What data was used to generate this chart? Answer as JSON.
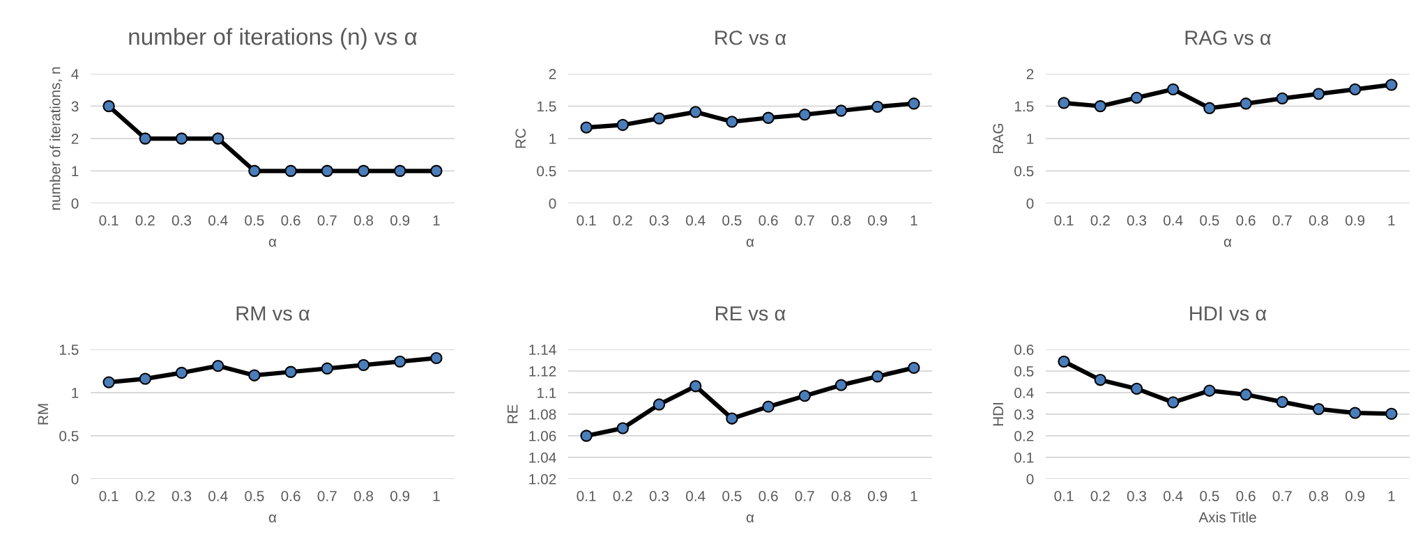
{
  "chart_data": [
    {
      "type": "line",
      "title": "number of iterations (n) vs α",
      "xlabel": "α",
      "ylabel": "number of iterations, n",
      "categories": [
        "0.1",
        "0.2",
        "0.3",
        "0.4",
        "0.5",
        "0.6",
        "0.7",
        "0.8",
        "0.9",
        "1"
      ],
      "series": [
        {
          "color": "#4a7ebb",
          "values": [
            3,
            2,
            2,
            2,
            1,
            1,
            1,
            1,
            1,
            1
          ]
        }
      ],
      "ylim": [
        0,
        4
      ],
      "yticks": [
        0,
        1,
        2,
        3,
        4
      ],
      "grid": "y",
      "marker": "circle",
      "line_style": "solid"
    },
    {
      "type": "line",
      "title": "RC vs α",
      "xlabel": "α",
      "ylabel": "RC",
      "categories": [
        "0.1",
        "0.2",
        "0.3",
        "0.4",
        "0.5",
        "0.6",
        "0.7",
        "0.8",
        "0.9",
        "1"
      ],
      "series": [
        {
          "color": "#4a7ebb",
          "values": [
            1.17,
            1.21,
            1.31,
            1.41,
            1.26,
            1.32,
            1.37,
            1.43,
            1.49,
            1.54
          ]
        }
      ],
      "ylim": [
        0,
        2
      ],
      "yticks": [
        0,
        0.5,
        1,
        1.5,
        2
      ],
      "grid": "y",
      "marker": "circle",
      "line_style": "solid"
    },
    {
      "type": "line",
      "title": "RAG vs α",
      "xlabel": "α",
      "ylabel": "RAG",
      "categories": [
        "0.1",
        "0.2",
        "0.3",
        "0.4",
        "0.5",
        "0.6",
        "0.7",
        "0.8",
        "0.9",
        "1"
      ],
      "series": [
        {
          "color": "#4a7ebb",
          "values": [
            1.55,
            1.5,
            1.63,
            1.76,
            1.47,
            1.54,
            1.62,
            1.69,
            1.76,
            1.83
          ]
        }
      ],
      "ylim": [
        0,
        2
      ],
      "yticks": [
        0,
        0.5,
        1,
        1.5,
        2
      ],
      "grid": "y",
      "marker": "circle",
      "line_style": "solid"
    },
    {
      "type": "line",
      "title": "RM vs α",
      "xlabel": "α",
      "ylabel": "RM",
      "categories": [
        "0.1",
        "0.2",
        "0.3",
        "0.4",
        "0.5",
        "0.6",
        "0.7",
        "0.8",
        "0.9",
        "1"
      ],
      "series": [
        {
          "color": "#4a7ebb",
          "values": [
            1.12,
            1.16,
            1.23,
            1.31,
            1.2,
            1.24,
            1.28,
            1.32,
            1.36,
            1.4
          ]
        }
      ],
      "ylim": [
        0,
        1.5
      ],
      "yticks": [
        0,
        0.5,
        1,
        1.5
      ],
      "grid": "y",
      "marker": "circle",
      "line_style": "solid"
    },
    {
      "type": "line",
      "title": "RE vs α",
      "xlabel": "α",
      "ylabel": "RE",
      "categories": [
        "0.1",
        "0.2",
        "0.3",
        "0.4",
        "0.5",
        "0.6",
        "0.7",
        "0.8",
        "0.9",
        "1"
      ],
      "series": [
        {
          "color": "#4a7ebb",
          "values": [
            1.06,
            1.067,
            1.089,
            1.106,
            1.076,
            1.087,
            1.097,
            1.107,
            1.115,
            1.123
          ]
        }
      ],
      "ylim": [
        1.02,
        1.14
      ],
      "yticks": [
        1.02,
        1.04,
        1.06,
        1.08,
        1.1,
        1.12,
        1.14
      ],
      "grid": "y",
      "marker": "circle",
      "line_style": "solid"
    },
    {
      "type": "line",
      "title": "HDI vs α",
      "xlabel": "Axis Title",
      "ylabel": "HDI",
      "categories": [
        "0.1",
        "0.2",
        "0.3",
        "0.4",
        "0.5",
        "0.6",
        "0.7",
        "0.8",
        "0.9",
        "1"
      ],
      "series": [
        {
          "color": "#4a7ebb",
          "values": [
            0.544,
            0.459,
            0.418,
            0.355,
            0.409,
            0.391,
            0.357,
            0.324,
            0.306,
            0.302
          ]
        }
      ],
      "ylim": [
        0,
        0.6
      ],
      "yticks": [
        0,
        0.1,
        0.2,
        0.3,
        0.4,
        0.5,
        0.6
      ],
      "grid": "y",
      "marker": "circle",
      "line_style": "solid"
    }
  ]
}
